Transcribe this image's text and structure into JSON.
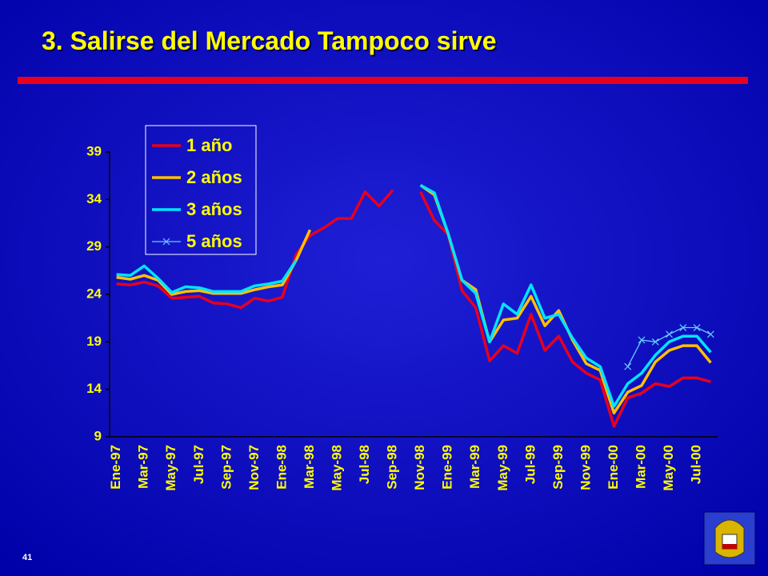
{
  "chart_data": {
    "type": "line",
    "title": "3. Salirse del Mercado Tampoco sirve",
    "categories": [
      "Ene-97",
      null,
      "Mar-97",
      null,
      "May-97",
      null,
      "Jul-97",
      null,
      "Sep-97",
      null,
      "Nov-97",
      null,
      "Ene-98",
      null,
      "Mar-98",
      null,
      "May-98",
      null,
      "Jul-98",
      null,
      "Sep-98",
      null,
      "Nov-98",
      null,
      "Ene-99",
      null,
      "Mar-99",
      null,
      "May-99",
      null,
      "Jul-99",
      null,
      "Sep-99",
      null,
      "Nov-99",
      null,
      "Ene-00",
      null,
      "Mar-00",
      null,
      "May-00",
      null,
      "Jul-00",
      null
    ],
    "series": [
      {
        "name": "1 año",
        "color": "#e8001c",
        "values": [
          25.1,
          25.0,
          25.3,
          24.9,
          23.6,
          23.7,
          23.8,
          23.1,
          23.0,
          22.6,
          23.6,
          23.3,
          23.7,
          28.2,
          30.2,
          31.0,
          32.0,
          32.0,
          34.8,
          33.3,
          35.0,
          null,
          34.8,
          31.8,
          30.3,
          24.4,
          22.6,
          17.0,
          18.6,
          17.8,
          21.9,
          18.1,
          19.6,
          16.9,
          15.7,
          15.0,
          10.1,
          13.1,
          13.6,
          14.6,
          14.3,
          15.2,
          15.2,
          14.8
        ]
      },
      {
        "name": "2 años",
        "color": "#ffc000",
        "values": [
          25.8,
          25.6,
          26.0,
          25.5,
          24.0,
          24.3,
          24.4,
          24.1,
          24.1,
          24.1,
          24.5,
          24.8,
          25.0,
          27.6,
          30.8,
          null,
          null,
          null,
          null,
          null,
          null,
          null,
          35.5,
          34.5,
          30.4,
          25.5,
          24.5,
          19.0,
          21.3,
          21.5,
          23.8,
          20.7,
          22.3,
          19.2,
          16.7,
          16.0,
          11.5,
          13.7,
          14.4,
          16.9,
          18.1,
          18.6,
          18.6,
          16.8
        ]
      },
      {
        "name": "3 años",
        "color": "#00e5ff",
        "values": [
          26.1,
          26.0,
          27.0,
          25.7,
          24.2,
          24.8,
          24.7,
          24.3,
          24.3,
          24.3,
          24.9,
          25.1,
          25.4,
          27.6,
          null,
          null,
          null,
          null,
          null,
          null,
          null,
          null,
          35.5,
          34.7,
          30.4,
          25.5,
          24.1,
          19.0,
          23.0,
          21.9,
          25.0,
          21.5,
          21.9,
          19.4,
          17.3,
          16.4,
          12.2,
          14.6,
          15.7,
          17.6,
          19.0,
          19.6,
          19.6,
          17.9
        ]
      },
      {
        "name": "5 años",
        "color": "#66ccff",
        "marker": "x",
        "values": [
          null,
          null,
          null,
          null,
          null,
          null,
          null,
          null,
          null,
          null,
          null,
          null,
          null,
          null,
          null,
          null,
          null,
          null,
          null,
          null,
          null,
          null,
          null,
          null,
          null,
          null,
          null,
          null,
          null,
          null,
          null,
          null,
          null,
          null,
          null,
          null,
          null,
          16.4,
          19.2,
          19.0,
          19.8,
          20.5,
          20.5,
          19.8
        ]
      }
    ],
    "ylim": [
      9,
      39
    ],
    "yticks": [
      9,
      14,
      19,
      24,
      29,
      34,
      39
    ],
    "legend": "upper-left"
  },
  "slide": {
    "page_number": "41"
  }
}
